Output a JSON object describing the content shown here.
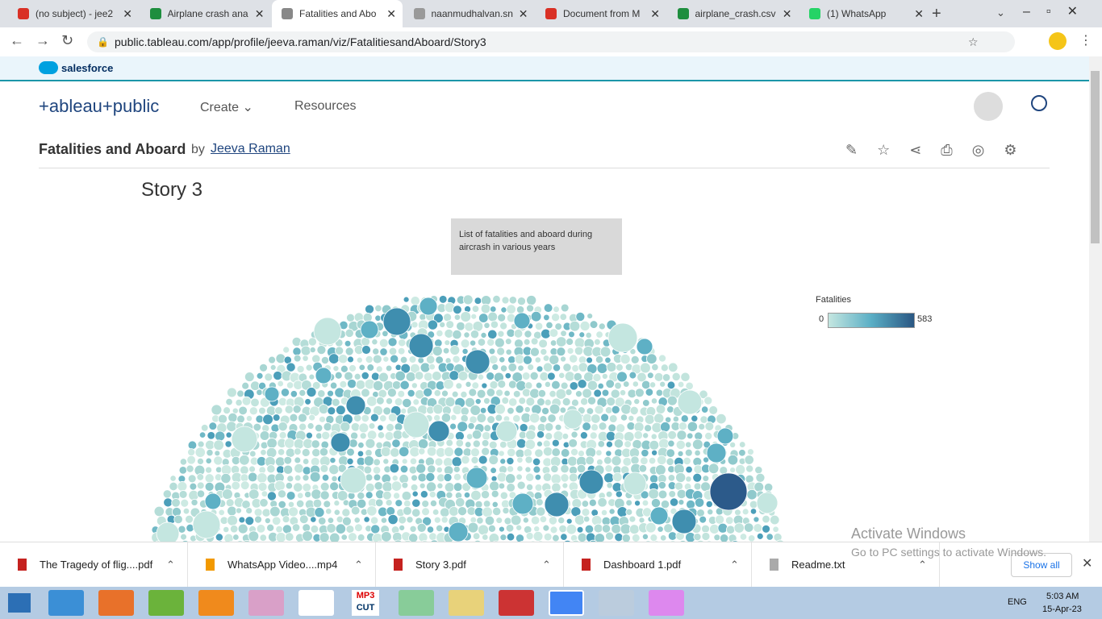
{
  "browser": {
    "tabs": [
      "(no subject) - jee2",
      "Airplane crash ana",
      "Fatalities and Abo",
      "naanmudhalvan.sn",
      "Document from M",
      "airplane_crash.csv",
      "(1) WhatsApp"
    ],
    "url": "public.tableau.com/app/profile/jeeva.raman/viz/FatalitiesandAboard/Story3"
  },
  "page": {
    "brand": "salesforce",
    "logo": "+ableau+public",
    "nav": [
      "Create",
      "Resources"
    ],
    "viz_title": "Fatalities and Aboard",
    "by": "by",
    "author": "Jeeva Raman",
    "story_title": "Story 3",
    "caption": "List of fatalities and aboard during aircrash in various years",
    "legend": {
      "title": "Fatalities",
      "min": "0",
      "max": "583"
    }
  },
  "watermark": {
    "title": "Activate Windows",
    "text": "Go to PC settings to activate Windows."
  },
  "downloads": {
    "items": [
      "The Tragedy of flig....pdf",
      "WhatsApp Video....mp4",
      "Story 3.pdf",
      "Dashboard 1.pdf",
      "Readme.txt"
    ],
    "show_all": "Show all"
  },
  "taskbar": {
    "app_labels": [
      "MP3",
      "CUT"
    ],
    "language": "ENG",
    "time": "5:03 AM",
    "date": "15-Apr-23"
  }
}
